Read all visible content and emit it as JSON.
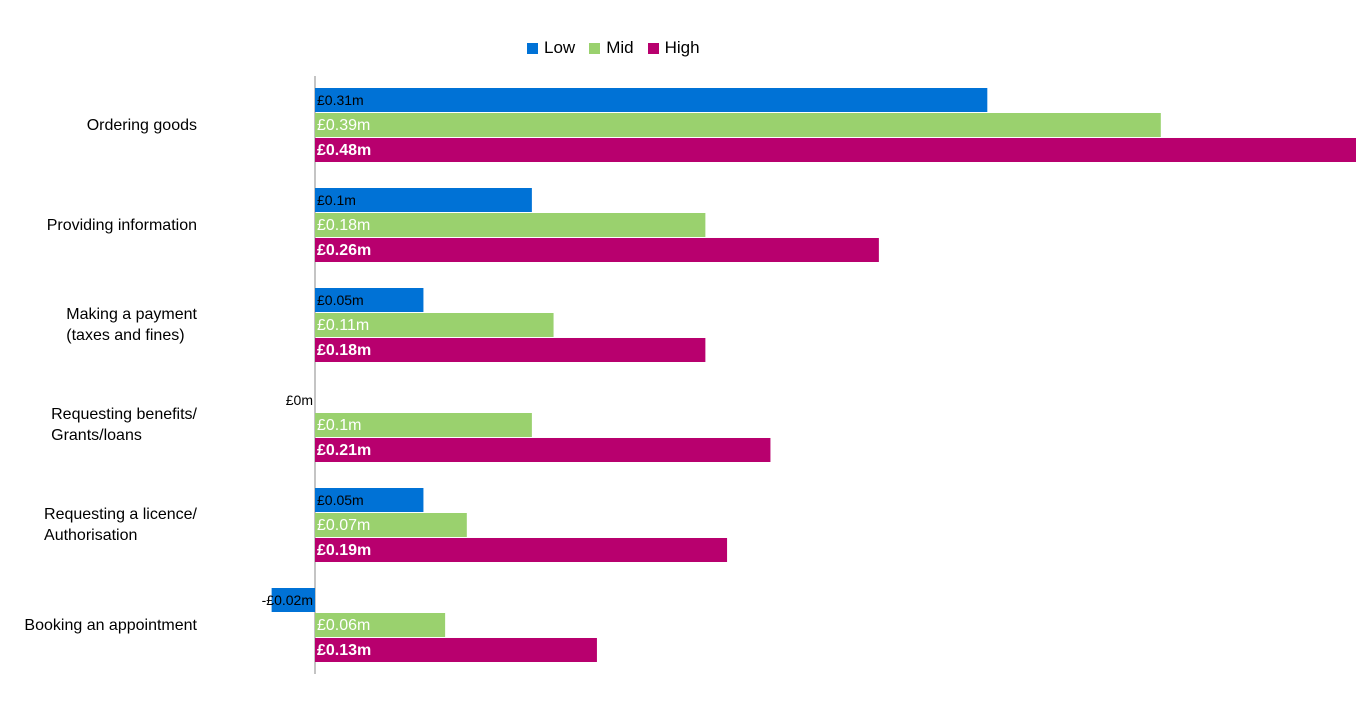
{
  "chart_data": {
    "type": "bar",
    "orientation": "horizontal",
    "title": "",
    "xlabel": "",
    "ylabel": "",
    "legend_position": "top",
    "grid": false,
    "categories": [
      [
        "Ordering goods"
      ],
      [
        "Providing information"
      ],
      [
        "Making a payment",
        "(taxes and fines)"
      ],
      [
        "Requesting benefits/",
        "Grants/loans"
      ],
      [
        "Requesting a licence/",
        "Authorisation"
      ],
      [
        "Booking an appointment"
      ]
    ],
    "series": [
      {
        "name": "Low",
        "color": "#0072d6",
        "values": [
          0.31,
          0.1,
          0.05,
          0,
          0.05,
          -0.02
        ],
        "labels": [
          "£0.31m",
          "£0.1m",
          "£0.05m",
          "£0m",
          "£0.05m",
          "-£0.02m"
        ]
      },
      {
        "name": "Mid",
        "color": "#9ad16e",
        "values": [
          0.39,
          0.18,
          0.11,
          0.1,
          0.07,
          0.06
        ],
        "labels": [
          "£0.39m",
          "£0.18m",
          "£0.11m",
          "£0.1m",
          "£0.07m",
          "£0.06m"
        ]
      },
      {
        "name": "High",
        "color": "#b8006e",
        "values": [
          0.48,
          0.26,
          0.18,
          0.21,
          0.19,
          0.13
        ],
        "labels": [
          "£0.48m",
          "£0.26m",
          "£0.18m",
          "£0.21m",
          "£0.19m",
          "£0.13m"
        ]
      }
    ],
    "xlim": [
      -0.02,
      0.48
    ]
  }
}
